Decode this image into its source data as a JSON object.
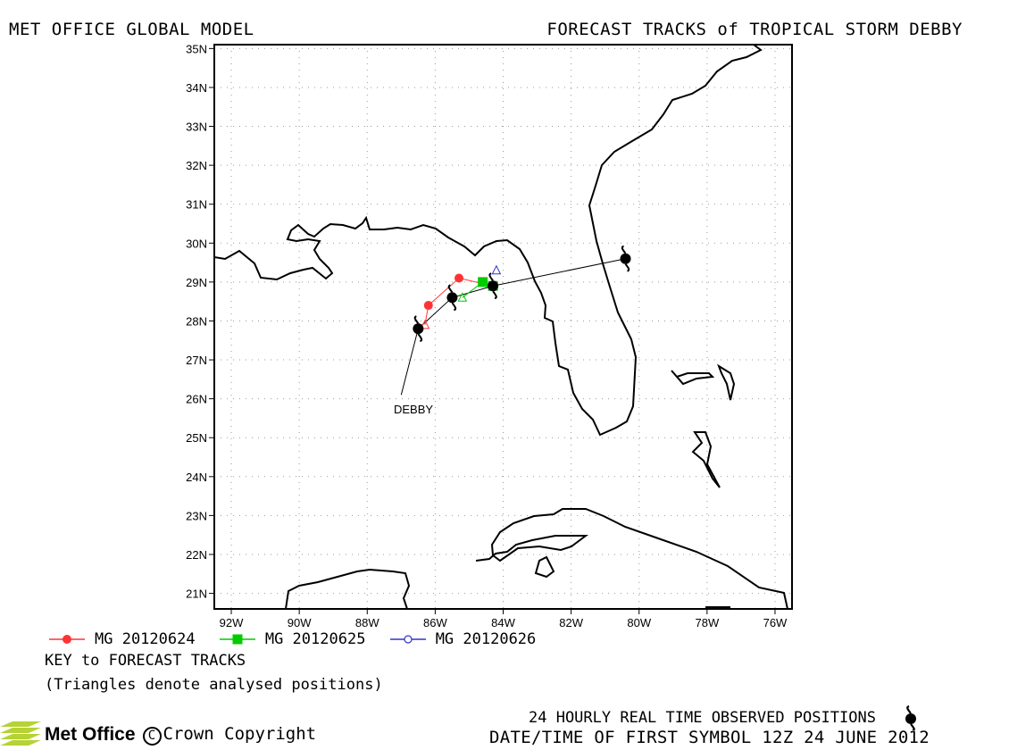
{
  "header": {
    "left_title": "MET OFFICE GLOBAL MODEL",
    "right_title": "FORECAST TRACKS of TROPICAL STORM DEBBY"
  },
  "map": {
    "lon_range": [
      -92.5,
      -75.5
    ],
    "lat_range": [
      20.6,
      35.1
    ],
    "lat_ticks": [
      "21N",
      "22N",
      "23N",
      "24N",
      "25N",
      "26N",
      "27N",
      "28N",
      "29N",
      "30N",
      "31N",
      "32N",
      "33N",
      "34N",
      "35N"
    ],
    "lon_ticks": [
      "92W",
      "90W",
      "88W",
      "86W",
      "84W",
      "82W",
      "80W",
      "78W",
      "76W"
    ],
    "storm_label": "DEBBY",
    "colors": {
      "mg20120624": "#ff3333",
      "mg20120625": "#00cc00",
      "mg20120626": "#3333cc",
      "observed": "#000000"
    }
  },
  "chart_data": {
    "type": "map-track",
    "observed_track": [
      {
        "lon": -87.0,
        "lat": 26.1
      },
      {
        "lon": -86.5,
        "lat": 27.8
      },
      {
        "lon": -85.5,
        "lat": 28.6
      },
      {
        "lon": -84.3,
        "lat": 28.9
      },
      {
        "lon": -80.4,
        "lat": 29.6
      }
    ],
    "observed_symbols": [
      {
        "lon": -86.5,
        "lat": 27.8
      },
      {
        "lon": -85.5,
        "lat": 28.6
      },
      {
        "lon": -84.3,
        "lat": 28.9
      },
      {
        "lon": -80.4,
        "lat": 29.6
      }
    ],
    "series": [
      {
        "name": "MG 20120624",
        "forecast": [
          {
            "lon": -86.3,
            "lat": 27.9
          },
          {
            "lon": -86.2,
            "lat": 28.4
          },
          {
            "lon": -85.3,
            "lat": 29.1
          },
          {
            "lon": -84.3,
            "lat": 28.9
          }
        ],
        "analysed": [
          {
            "lon": -86.3,
            "lat": 27.9
          }
        ]
      },
      {
        "name": "MG 20120625",
        "forecast": [
          {
            "lon": -85.2,
            "lat": 28.6
          },
          {
            "lon": -84.6,
            "lat": 29.0
          },
          {
            "lon": -84.3,
            "lat": 28.9
          }
        ],
        "analysed": [
          {
            "lon": -85.2,
            "lat": 28.6
          }
        ]
      },
      {
        "name": "MG 20120626",
        "forecast": [
          {
            "lon": -84.2,
            "lat": 29.3
          }
        ],
        "analysed": [
          {
            "lon": -84.2,
            "lat": 29.3
          }
        ]
      }
    ]
  },
  "legend": {
    "items": [
      "MG 20120624",
      "MG 20120625",
      "MG 20120626"
    ],
    "key_title": "KEY to FORECAST TRACKS",
    "key_note": "(Triangles denote analysed positions)"
  },
  "footer": {
    "observed_label": "24 HOURLY REAL TIME OBSERVED POSITIONS",
    "datetime_label": "DATE/TIME OF FIRST SYMBOL 12Z 24 JUNE 2012",
    "logo_text": "Met Office",
    "copyright": "Crown Copyright"
  }
}
